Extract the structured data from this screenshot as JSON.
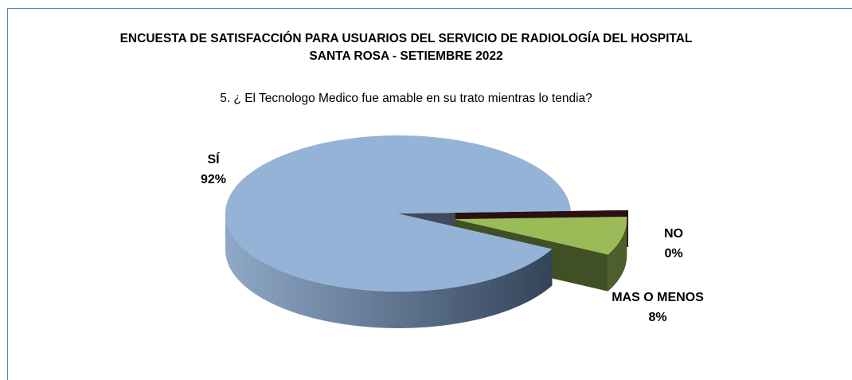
{
  "chart_data": {
    "type": "pie",
    "title": "ENCUESTA DE SATISFACCIÓN PARA USUARIOS DEL SERVICIO DE RADIOLOGÍA DEL HOSPITAL SANTA ROSA - SETIEMBRE 2022",
    "subtitle": "5. ¿ El Tecnologo Medico fue amable en su trato mientras lo tendia?",
    "categories": [
      "SÍ",
      "NO",
      "MAS O MENOS"
    ],
    "values": [
      92,
      0,
      8
    ],
    "value_labels": [
      "92%",
      "0%",
      "8%"
    ],
    "colors": [
      "#95b3d7",
      "#632523",
      "#9bbb59"
    ]
  }
}
